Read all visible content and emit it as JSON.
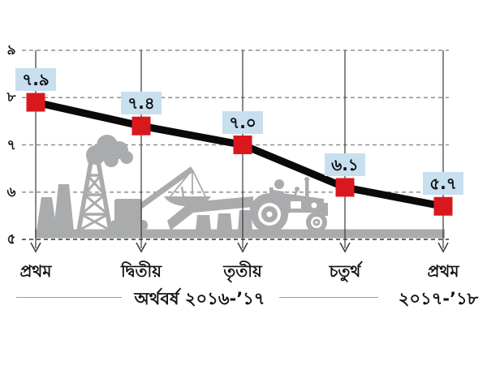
{
  "chart_data": {
    "type": "line",
    "categories": [
      "প্রথম",
      "দ্বিতীয়",
      "তৃতীয়",
      "চতুর্থ",
      "প্রথম"
    ],
    "values": [
      7.9,
      7.4,
      7.0,
      6.1,
      5.7
    ],
    "value_labels": [
      "৭.৯",
      "৭.৪",
      "৭.০",
      "৬.১",
      "৫.৭"
    ],
    "y_ticks": [
      {
        "label": "৯",
        "value": 9
      },
      {
        "label": "৮",
        "value": 8
      },
      {
        "label": "৭",
        "value": 7
      },
      {
        "label": "৬",
        "value": 6
      },
      {
        "label": "৫",
        "value": 5
      }
    ],
    "ylim": [
      5,
      9
    ],
    "grid": true,
    "legend": "none",
    "x_group_labels": {
      "left": "অর্থবর্ষ ২০১৬-’১৭",
      "right": "২০১৭-’১৮"
    },
    "colors": {
      "line": "#0a0a0a",
      "marker": "#d9181e",
      "label_bg": "#c8dff0",
      "silhouette": "#a9abad",
      "grid": "#8f8f8f",
      "axis": "#3a3a3a"
    }
  }
}
